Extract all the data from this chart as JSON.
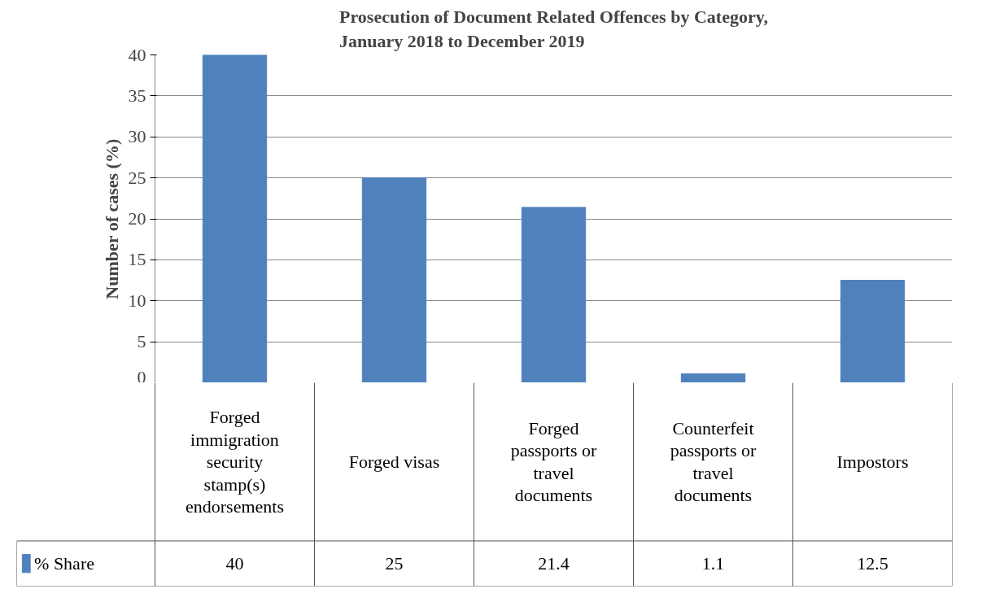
{
  "chart_data": {
    "type": "bar",
    "title": "Prosecution of Document Related Offences by Category, January 2018 to December 2019",
    "ylabel": "Number of cases (%)",
    "categories": [
      "Forged immigration security stamp(s) endorsements",
      "Forged visas",
      "Forged passports or travel documents",
      "Counterfeit passports or travel documents",
      "Impostors"
    ],
    "series": [
      {
        "name": "% Share",
        "color": "#4f81bd",
        "values": [
          40,
          25,
          21.4,
          1.1,
          12.5
        ]
      }
    ],
    "ylim": [
      0,
      40
    ],
    "yticks": [
      0,
      5,
      10,
      15,
      20,
      25,
      30,
      35,
      40
    ],
    "grid": "y",
    "legend": "bottom",
    "data_labels": true
  }
}
